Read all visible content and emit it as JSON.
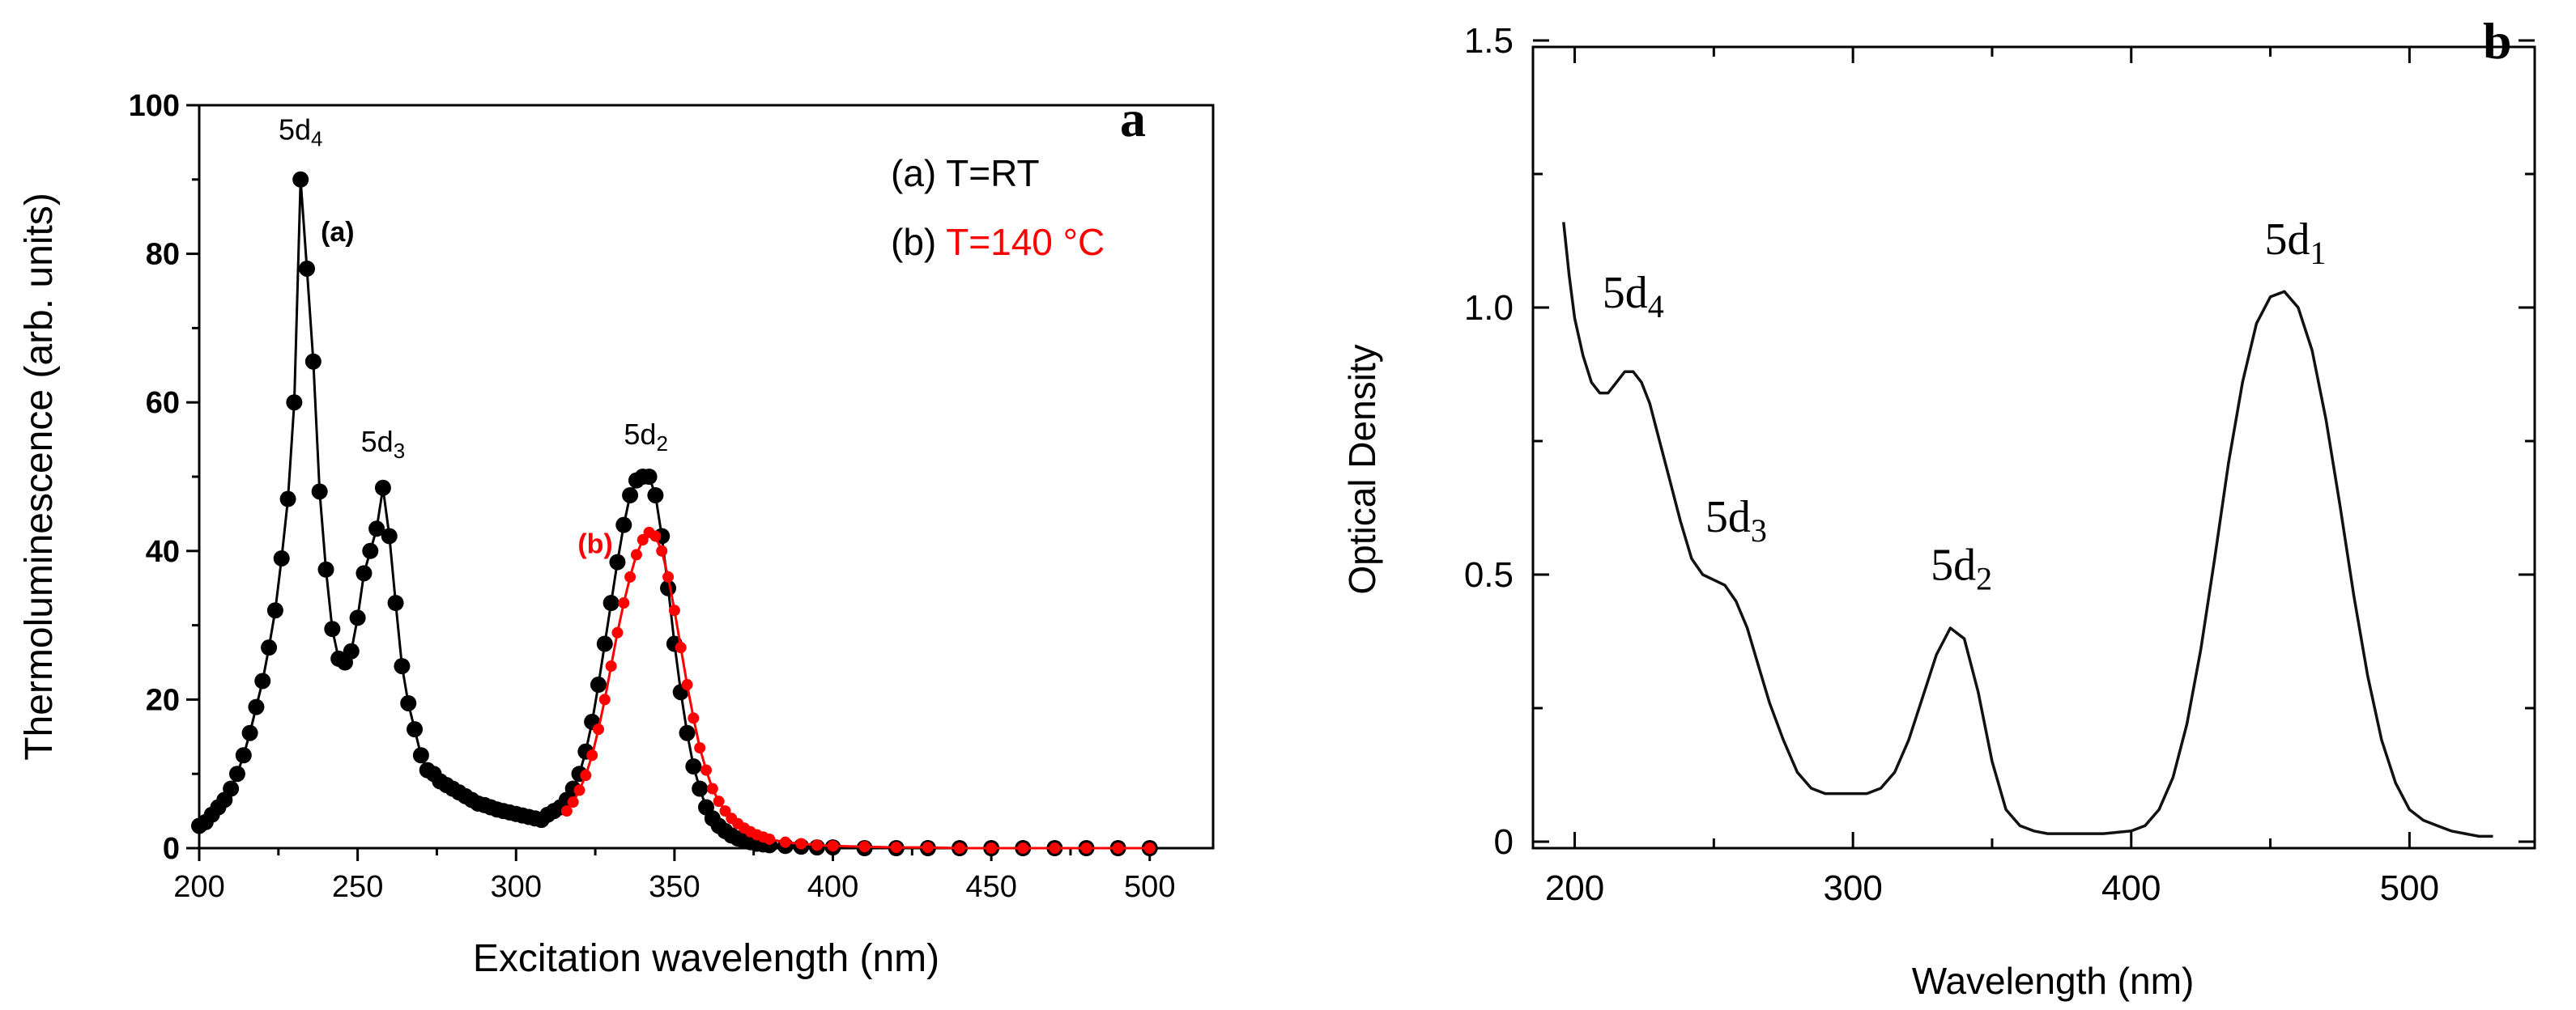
{
  "chart_data": [
    {
      "panel": "a",
      "type": "line",
      "title": "",
      "xlabel": "Excitation wavelength (nm)",
      "ylabel": "Thermoluminescence (arb. units)",
      "xlim": [
        200,
        520
      ],
      "ylim": [
        0,
        100
      ],
      "xticks": [
        "200",
        "250",
        "300",
        "350",
        "400",
        "450",
        "500"
      ],
      "yticks": [
        "0",
        "20",
        "40",
        "60",
        "80",
        "100"
      ],
      "legend": [
        {
          "text": "(a) T=RT",
          "color": "#000000"
        },
        {
          "prefix": "(b) ",
          "text": "T=140 °C",
          "color": "#ff0000"
        }
      ],
      "peak_labels": [
        {
          "text": "5d4",
          "x": 232,
          "y": 91
        },
        {
          "text": "5d3",
          "x": 258,
          "y": 49
        },
        {
          "text": "5d2",
          "x": 341,
          "y": 50
        }
      ],
      "curve_labels": [
        {
          "text": "(a)",
          "x": 236,
          "y": 83,
          "color": "#000000"
        },
        {
          "text": "(b)",
          "x": 325,
          "y": 41,
          "color": "#ff0000"
        }
      ],
      "series": [
        {
          "name": "(a) T=RT",
          "color": "#000000",
          "x": [
            200,
            202,
            204,
            206,
            208,
            210,
            212,
            214,
            216,
            218,
            220,
            222,
            224,
            226,
            228,
            230,
            232,
            234,
            236,
            238,
            240,
            242,
            244,
            246,
            248,
            250,
            252,
            254,
            256,
            258,
            260,
            262,
            264,
            266,
            268,
            270,
            272,
            274,
            276,
            278,
            280,
            282,
            284,
            286,
            288,
            290,
            292,
            294,
            296,
            298,
            300,
            302,
            304,
            306,
            308,
            310,
            312,
            314,
            316,
            318,
            320,
            322,
            324,
            326,
            328,
            330,
            332,
            334,
            336,
            338,
            340,
            342,
            344,
            346,
            348,
            350,
            352,
            354,
            356,
            358,
            360,
            362,
            364,
            366,
            368,
            370,
            372,
            374,
            376,
            378,
            380,
            385,
            390,
            395,
            400,
            410,
            420,
            430,
            440,
            450,
            460,
            470,
            480,
            490,
            500
          ],
          "y": [
            3,
            3.5,
            4.5,
            5.5,
            6.5,
            8,
            10,
            12.5,
            15.5,
            19,
            22.5,
            27,
            32,
            39,
            47,
            60,
            90,
            78,
            65.5,
            48,
            37.5,
            29.5,
            25.5,
            25,
            26.5,
            31,
            37,
            40,
            43,
            48.5,
            42,
            33,
            24.5,
            19.5,
            16,
            12.5,
            10.5,
            10,
            9,
            8.5,
            8,
            7.5,
            7,
            6.5,
            6,
            5.8,
            5.5,
            5.2,
            5,
            4.8,
            4.6,
            4.4,
            4.2,
            4,
            3.8,
            4.5,
            5,
            5.5,
            6.5,
            8,
            10,
            13,
            17,
            22,
            27.5,
            33,
            38.5,
            43.5,
            47.5,
            49.5,
            50,
            50,
            47.5,
            42,
            35,
            27.5,
            21,
            15.5,
            11,
            8,
            5.5,
            4,
            3,
            2.3,
            1.7,
            1.3,
            1,
            0.8,
            0.6,
            0.5,
            0.4,
            0.3,
            0.2,
            0.1,
            0.1,
            0,
            0,
            0,
            0,
            0,
            0,
            0,
            0,
            0,
            0
          ]
        },
        {
          "name": "(b) T=140 °C",
          "color": "#ff0000",
          "x": [
            316,
            318,
            320,
            322,
            324,
            326,
            328,
            330,
            332,
            334,
            336,
            338,
            340,
            342,
            344,
            346,
            348,
            350,
            352,
            354,
            356,
            358,
            360,
            362,
            364,
            366,
            368,
            370,
            372,
            374,
            376,
            378,
            380,
            385,
            390,
            395,
            400,
            410,
            420,
            430,
            440,
            450,
            460,
            470,
            480,
            490,
            500
          ],
          "y": [
            5,
            6.2,
            7.8,
            9.8,
            12.5,
            16,
            20,
            24.5,
            29,
            33,
            36.5,
            39.5,
            41.5,
            42.5,
            42,
            40,
            36.5,
            32,
            27,
            22,
            17.5,
            13.5,
            10.5,
            8,
            6.3,
            5,
            4,
            3.3,
            2.7,
            2.2,
            1.8,
            1.5,
            1.2,
            0.8,
            0.6,
            0.4,
            0.3,
            0.2,
            0.1,
            0.1,
            0,
            0,
            0,
            0,
            0,
            0,
            0
          ]
        }
      ]
    },
    {
      "panel": "b",
      "type": "line",
      "title": "",
      "xlabel": "Wavelength (nm)",
      "ylabel": "Optical Density",
      "xlim": [
        185,
        545
      ],
      "ylim": [
        0,
        1.5
      ],
      "xticks": [
        "200",
        "300",
        "400",
        "500"
      ],
      "yticks": [
        "0",
        "0.5",
        "1.0",
        "1.5"
      ],
      "peak_labels": [
        {
          "text": "5d4",
          "x": 221,
          "y": 1.0
        },
        {
          "text": "5d3",
          "x": 258,
          "y": 0.58
        },
        {
          "text": "5d2",
          "x": 339,
          "y": 0.49
        },
        {
          "text": "5d1",
          "x": 459,
          "y": 1.1
        }
      ],
      "series": [
        {
          "name": "Optical Density",
          "color": "#111111",
          "x": [
            196,
            198,
            200,
            203,
            206,
            209,
            212,
            215,
            218,
            221,
            224,
            227,
            230,
            234,
            238,
            242,
            246,
            250,
            254,
            258,
            262,
            266,
            270,
            275,
            280,
            285,
            290,
            295,
            300,
            305,
            310,
            315,
            320,
            325,
            330,
            335,
            340,
            345,
            350,
            355,
            360,
            365,
            370,
            380,
            390,
            400,
            405,
            410,
            415,
            420,
            425,
            430,
            435,
            440,
            445,
            450,
            455,
            460,
            465,
            470,
            475,
            480,
            485,
            490,
            495,
            500,
            505,
            510,
            515,
            520,
            525,
            530
          ],
          "y": [
            1.16,
            1.06,
            0.98,
            0.91,
            0.86,
            0.84,
            0.84,
            0.86,
            0.88,
            0.88,
            0.86,
            0.82,
            0.76,
            0.68,
            0.6,
            0.53,
            0.5,
            0.49,
            0.48,
            0.45,
            0.4,
            0.33,
            0.26,
            0.19,
            0.13,
            0.1,
            0.09,
            0.09,
            0.09,
            0.09,
            0.1,
            0.13,
            0.19,
            0.27,
            0.35,
            0.4,
            0.38,
            0.28,
            0.15,
            0.06,
            0.03,
            0.02,
            0.015,
            0.015,
            0.015,
            0.02,
            0.03,
            0.06,
            0.12,
            0.22,
            0.36,
            0.53,
            0.71,
            0.86,
            0.97,
            1.02,
            1.03,
            1.0,
            0.92,
            0.79,
            0.63,
            0.46,
            0.31,
            0.19,
            0.11,
            0.06,
            0.04,
            0.03,
            0.02,
            0.015,
            0.01,
            0.01
          ]
        }
      ]
    }
  ]
}
